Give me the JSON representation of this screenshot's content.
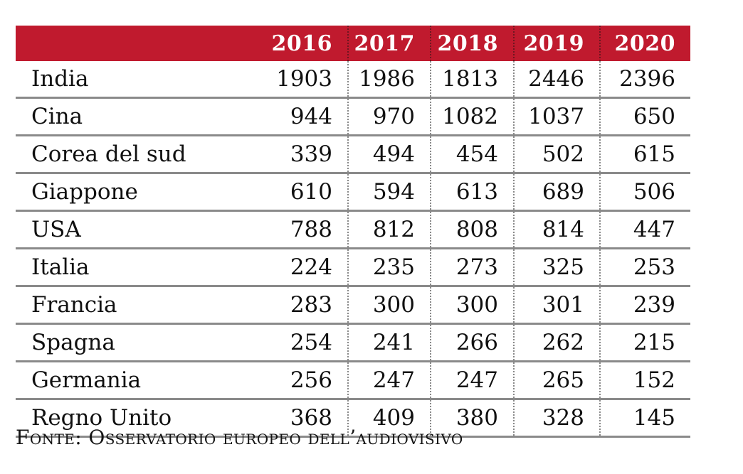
{
  "colors": {
    "header_bg": "#c01a2e",
    "header_text": "#ffffff",
    "row_line": "#8a8a8a",
    "dotted_body": "#898989",
    "dotted_header": "#6e1620"
  },
  "table": {
    "header": {
      "corner_label": "",
      "years": [
        "2016",
        "2017",
        "2018",
        "2019",
        "2020"
      ]
    },
    "rows": [
      {
        "label": "India",
        "values": [
          "1903",
          "1986",
          "1813",
          "2446",
          "2396"
        ]
      },
      {
        "label": "Cina",
        "values": [
          "944",
          "970",
          "1082",
          "1037",
          "650"
        ]
      },
      {
        "label": "Corea del sud",
        "values": [
          "339",
          "494",
          "454",
          "502",
          "615"
        ]
      },
      {
        "label": "Giappone",
        "values": [
          "610",
          "594",
          "613",
          "689",
          "506"
        ]
      },
      {
        "label": "USA",
        "values": [
          "788",
          "812",
          "808",
          "814",
          "447"
        ]
      },
      {
        "label": "Italia",
        "values": [
          "224",
          "235",
          "273",
          "325",
          "253"
        ]
      },
      {
        "label": "Francia",
        "values": [
          "283",
          "300",
          "300",
          "301",
          "239"
        ]
      },
      {
        "label": "Spagna",
        "values": [
          "254",
          "241",
          "266",
          "262",
          "215"
        ]
      },
      {
        "label": "Germania",
        "values": [
          "256",
          "247",
          "247",
          "265",
          "152"
        ]
      },
      {
        "label": "Regno Unito",
        "values": [
          "368",
          "409",
          "380",
          "328",
          "145"
        ]
      }
    ]
  },
  "source": {
    "text": "Fonte: Osservatorio europeo dell’audiovisivo"
  },
  "chart_data": {
    "type": "table",
    "title": "",
    "categories": [
      "2016",
      "2017",
      "2018",
      "2019",
      "2020"
    ],
    "series": [
      {
        "name": "India",
        "values": [
          1903,
          1986,
          1813,
          2446,
          2396
        ]
      },
      {
        "name": "Cina",
        "values": [
          944,
          970,
          1082,
          1037,
          650
        ]
      },
      {
        "name": "Corea del sud",
        "values": [
          339,
          494,
          454,
          502,
          615
        ]
      },
      {
        "name": "Giappone",
        "values": [
          610,
          594,
          613,
          689,
          506
        ]
      },
      {
        "name": "USA",
        "values": [
          788,
          812,
          808,
          814,
          447
        ]
      },
      {
        "name": "Italia",
        "values": [
          224,
          235,
          273,
          325,
          253
        ]
      },
      {
        "name": "Francia",
        "values": [
          283,
          300,
          300,
          301,
          239
        ]
      },
      {
        "name": "Spagna",
        "values": [
          254,
          241,
          266,
          262,
          215
        ]
      },
      {
        "name": "Germania",
        "values": [
          256,
          247,
          247,
          265,
          152
        ]
      },
      {
        "name": "Regno Unito",
        "values": [
          368,
          409,
          380,
          328,
          145
        ]
      }
    ],
    "source": "Fonte: Osservatorio europeo dell’audiovisivo",
    "layout": {
      "header_position": "top",
      "grid": "solid-row-lines, dotted-column-lines",
      "legend": "none"
    }
  }
}
